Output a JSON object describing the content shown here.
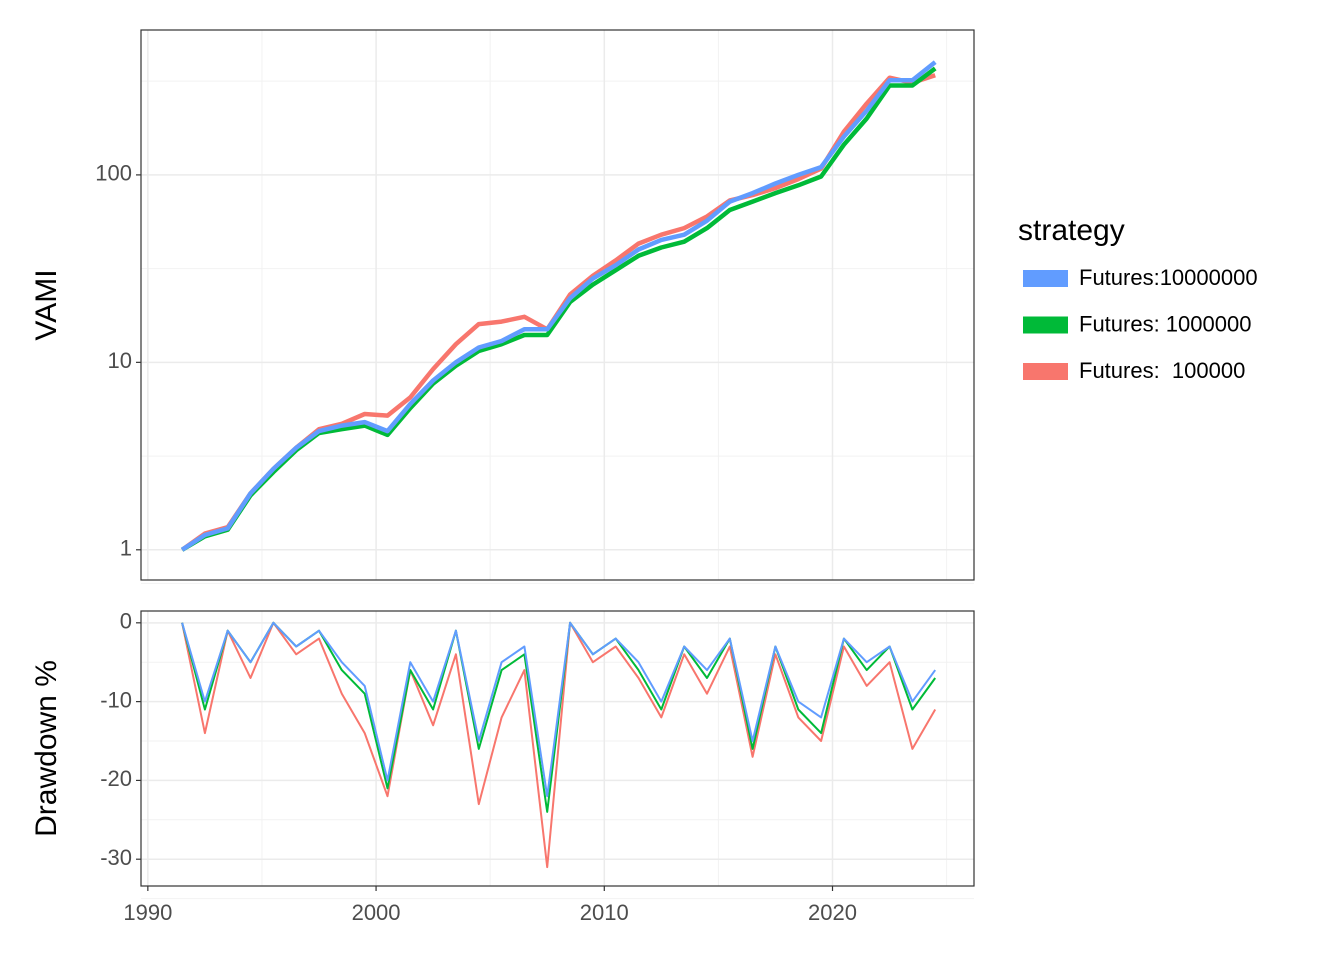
{
  "chart_data": [
    {
      "type": "line",
      "ylabel": "VAMI",
      "log_y": true,
      "grid": true,
      "legend_title": "strategy",
      "legend_position": "right",
      "x": [
        1991.5,
        1992.5,
        1993.5,
        1994.5,
        1995.5,
        1996.5,
        1997.5,
        1998.5,
        1999.5,
        2000.5,
        2001.5,
        2002.5,
        2003.5,
        2004.5,
        2005.5,
        2006.5,
        2007.5,
        2008.5,
        2009.5,
        2010.5,
        2011.5,
        2012.5,
        2013.5,
        2014.5,
        2015.5,
        2016.5,
        2017.5,
        2018.5,
        2019.5,
        2020.5,
        2021.5,
        2022.5,
        2023.5,
        2024.5
      ],
      "xlim": [
        1989.7,
        2026.2
      ],
      "xticks": [
        1990,
        2000,
        2010,
        2020
      ],
      "ylim": [
        0.69,
        593
      ],
      "yticks": [
        1,
        10,
        100
      ],
      "series": [
        {
          "name": "Futures:10000000",
          "color": "#619cff",
          "values": [
            1,
            1.2,
            1.3,
            2.0,
            2.7,
            3.5,
            4.3,
            4.6,
            4.8,
            4.3,
            6.0,
            8.0,
            10,
            12,
            13,
            15,
            15,
            22,
            28,
            33,
            40,
            45,
            48,
            57,
            72,
            80,
            90,
            100,
            110,
            160,
            220,
            320,
            320,
            400
          ]
        },
        {
          "name": "Futures: 1000000",
          "color": "#00ba38",
          "values": [
            1,
            1.18,
            1.28,
            1.95,
            2.6,
            3.4,
            4.2,
            4.4,
            4.6,
            4.1,
            5.7,
            7.7,
            9.6,
            11.5,
            12.5,
            14,
            14,
            21,
            26,
            31,
            37,
            41,
            44,
            52,
            65,
            72,
            80,
            88,
            98,
            145,
            200,
            300,
            300,
            370
          ]
        },
        {
          "name": "Futures:  100000",
          "color": "#f8766d",
          "values": [
            1,
            1.22,
            1.32,
            2.0,
            2.7,
            3.5,
            4.4,
            4.7,
            5.3,
            5.2,
            6.5,
            9.2,
            12.5,
            16,
            16.5,
            17.5,
            15,
            23,
            29,
            35,
            43,
            48,
            52,
            60,
            73,
            78,
            85,
            95,
            108,
            170,
            240,
            330,
            310,
            340
          ]
        }
      ]
    },
    {
      "type": "line",
      "ylabel": "Drawdown %",
      "grid": true,
      "x": [
        1991.5,
        1992.5,
        1993.5,
        1994.5,
        1995.5,
        1996.5,
        1997.5,
        1998.5,
        1999.5,
        2000.5,
        2001.5,
        2002.5,
        2003.5,
        2004.5,
        2005.5,
        2006.5,
        2007.5,
        2008.5,
        2009.5,
        2010.5,
        2011.5,
        2012.5,
        2013.5,
        2014.5,
        2015.5,
        2016.5,
        2017.5,
        2018.5,
        2019.5,
        2020.5,
        2021.5,
        2022.5,
        2023.5,
        2024.5
      ],
      "xlim": [
        1989.7,
        2026.2
      ],
      "xticks": [
        1990,
        2000,
        2010,
        2020
      ],
      "ylim": [
        -33.4,
        1.5
      ],
      "yticks": [
        0,
        -10,
        -20,
        -30
      ],
      "series": [
        {
          "name": "Futures:10000000",
          "color": "#619cff",
          "values": [
            0,
            -10,
            -1,
            -5,
            0,
            -3,
            -1,
            -5,
            -8,
            -20,
            -5,
            -10,
            -1,
            -15,
            -5,
            -3,
            -22,
            0,
            -4,
            -2,
            -5,
            -10,
            -3,
            -6,
            -2,
            -15,
            -3,
            -10,
            -12,
            -2,
            -5,
            -3,
            -10,
            -6
          ]
        },
        {
          "name": "Futures: 1000000",
          "color": "#00ba38",
          "values": [
            0,
            -11,
            -1,
            -5,
            0,
            -3,
            -1,
            -6,
            -9,
            -21,
            -6,
            -11,
            -1,
            -16,
            -6,
            -4,
            -24,
            0,
            -4,
            -2,
            -6,
            -11,
            -3,
            -7,
            -2,
            -16,
            -3,
            -11,
            -14,
            -2,
            -6,
            -3,
            -11,
            -7
          ]
        },
        {
          "name": "Futures:  100000",
          "color": "#f8766d",
          "values": [
            0,
            -14,
            -1,
            -7,
            0,
            -4,
            -2,
            -9,
            -14,
            -22,
            -6,
            -13,
            -4,
            -23,
            -12,
            -6,
            -31,
            0,
            -5,
            -3,
            -7,
            -12,
            -4,
            -9,
            -3,
            -17,
            -4,
            -12,
            -15,
            -3,
            -8,
            -5,
            -16,
            -11
          ]
        }
      ]
    }
  ]
}
